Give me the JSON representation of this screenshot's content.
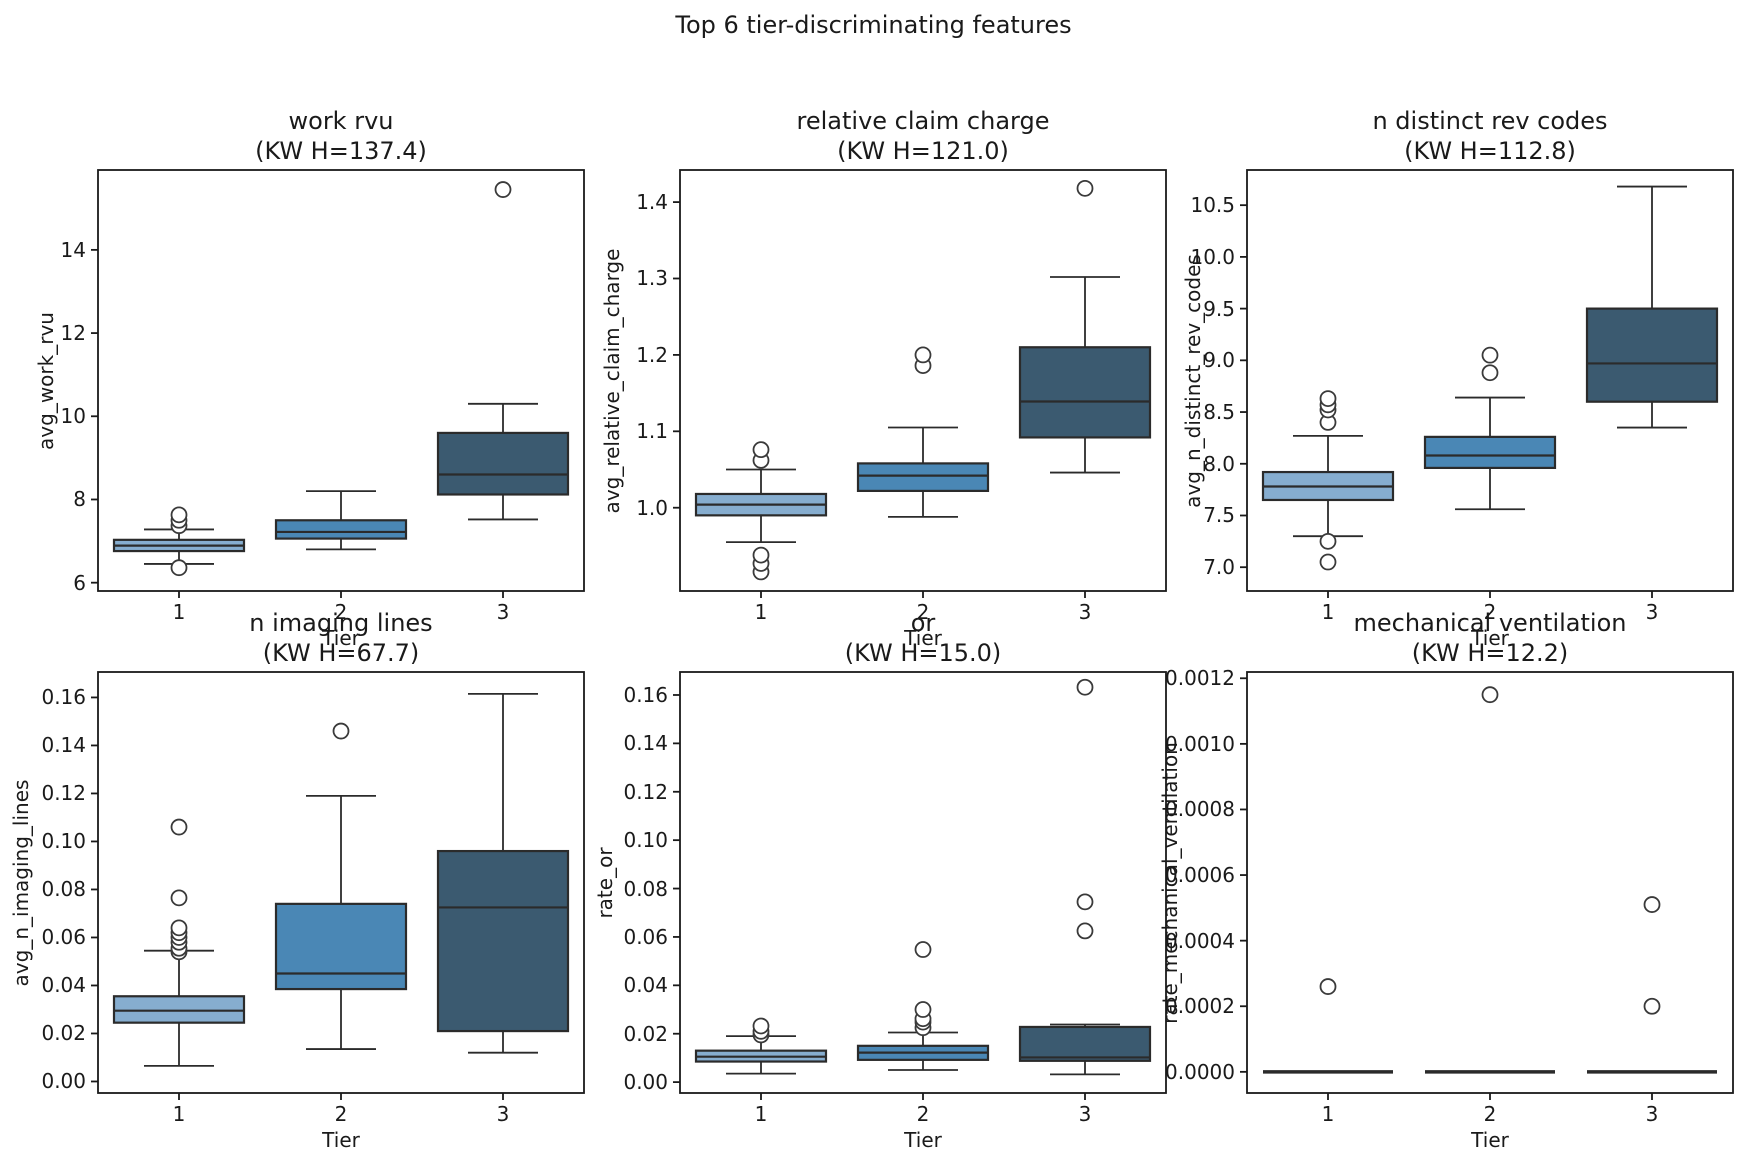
{
  "suptitle": "Top 6 tier-discriminating features",
  "colors": {
    "tier_fill": [
      "#86adcf",
      "#4a87b5",
      "#3b5a70"
    ],
    "box_edge": "#2b2b2b",
    "flier_edge": "#3a3a3a",
    "axis": "#1a1a1a",
    "text": "#1a1a1a",
    "background": "#ffffff"
  },
  "chart_data": [
    {
      "type": "box",
      "title": "work rvu",
      "kw_label": "(KW H=137.4)",
      "kw_h": 137.4,
      "ylabel": "avg_work_rvu",
      "xlabel": "Tier",
      "categories": [
        "1",
        "2",
        "3"
      ],
      "ylim": [
        5.8,
        15.92
      ],
      "grid": false,
      "yticks": [
        {
          "value": 6,
          "label": "6"
        },
        {
          "value": 8,
          "label": "8"
        },
        {
          "value": 10,
          "label": "10"
        },
        {
          "value": 12,
          "label": "12"
        },
        {
          "value": 14,
          "label": "14"
        }
      ],
      "boxes": [
        {
          "tier": "1",
          "whislo": 6.45,
          "q1": 6.76,
          "med": 6.89,
          "q3": 7.03,
          "whishi": 7.28,
          "fliers": [
            6.36,
            7.37,
            7.5,
            7.63
          ]
        },
        {
          "tier": "2",
          "whislo": 6.8,
          "q1": 7.06,
          "med": 7.22,
          "q3": 7.5,
          "whishi": 8.2,
          "fliers": []
        },
        {
          "tier": "3",
          "whislo": 7.52,
          "q1": 8.12,
          "med": 8.6,
          "q3": 9.6,
          "whishi": 10.3,
          "fliers": [
            15.45
          ]
        }
      ]
    },
    {
      "type": "box",
      "title": "relative claim charge",
      "kw_label": "(KW H=121.0)",
      "kw_h": 121.0,
      "ylabel": "avg_relative_claim_charge",
      "xlabel": "Tier",
      "categories": [
        "1",
        "2",
        "3"
      ],
      "ylim": [
        0.891,
        1.442
      ],
      "grid": false,
      "yticks": [
        {
          "value": 1.0,
          "label": "1.0"
        },
        {
          "value": 1.1,
          "label": "1.1"
        },
        {
          "value": 1.2,
          "label": "1.2"
        },
        {
          "value": 1.3,
          "label": "1.3"
        },
        {
          "value": 1.4,
          "label": "1.4"
        }
      ],
      "boxes": [
        {
          "tier": "1",
          "whislo": 0.955,
          "q1": 0.99,
          "med": 1.004,
          "q3": 1.018,
          "whishi": 1.05,
          "fliers": [
            0.916,
            0.927,
            0.938,
            1.062,
            1.076
          ]
        },
        {
          "tier": "2",
          "whislo": 0.988,
          "q1": 1.022,
          "med": 1.042,
          "q3": 1.058,
          "whishi": 1.105,
          "fliers": [
            1.186,
            1.2
          ]
        },
        {
          "tier": "3",
          "whislo": 1.046,
          "q1": 1.092,
          "med": 1.139,
          "q3": 1.21,
          "whishi": 1.302,
          "fliers": [
            1.418
          ]
        }
      ]
    },
    {
      "type": "box",
      "title": "n distinct rev codes",
      "kw_label": "(KW H=112.8)",
      "kw_h": 112.8,
      "ylabel": "avg_n_distinct_rev_codes",
      "xlabel": "Tier",
      "categories": [
        "1",
        "2",
        "3"
      ],
      "ylim": [
        6.77,
        10.84
      ],
      "grid": false,
      "yticks": [
        {
          "value": 7.0,
          "label": "7.0"
        },
        {
          "value": 7.5,
          "label": "7.5"
        },
        {
          "value": 8.0,
          "label": "8.0"
        },
        {
          "value": 8.5,
          "label": "8.5"
        },
        {
          "value": 9.0,
          "label": "9.0"
        },
        {
          "value": 9.5,
          "label": "9.5"
        },
        {
          "value": 10.0,
          "label": "10.0"
        },
        {
          "value": 10.5,
          "label": "10.5"
        }
      ],
      "boxes": [
        {
          "tier": "1",
          "whislo": 7.3,
          "q1": 7.65,
          "med": 7.78,
          "q3": 7.92,
          "whishi": 8.27,
          "fliers": [
            7.05,
            7.25,
            8.4,
            8.52,
            8.57,
            8.63
          ]
        },
        {
          "tier": "2",
          "whislo": 7.56,
          "q1": 7.96,
          "med": 8.08,
          "q3": 8.26,
          "whishi": 8.64,
          "fliers": [
            8.88,
            9.05
          ]
        },
        {
          "tier": "3",
          "whislo": 8.35,
          "q1": 8.6,
          "med": 8.97,
          "q3": 9.5,
          "whishi": 10.68,
          "fliers": []
        }
      ]
    },
    {
      "type": "box",
      "title": "n imaging lines",
      "kw_label": "(KW H=67.7)",
      "kw_h": 67.7,
      "ylabel": "avg_n_imaging_lines",
      "xlabel": "Tier",
      "categories": [
        "1",
        "2",
        "3"
      ],
      "ylim": [
        -0.0048,
        0.1706
      ],
      "grid": false,
      "yticks": [
        {
          "value": 0.0,
          "label": "0.00"
        },
        {
          "value": 0.02,
          "label": "0.02"
        },
        {
          "value": 0.04,
          "label": "0.04"
        },
        {
          "value": 0.06,
          "label": "0.06"
        },
        {
          "value": 0.08,
          "label": "0.08"
        },
        {
          "value": 0.1,
          "label": "0.10"
        },
        {
          "value": 0.12,
          "label": "0.12"
        },
        {
          "value": 0.14,
          "label": "0.14"
        },
        {
          "value": 0.16,
          "label": "0.16"
        }
      ],
      "boxes": [
        {
          "tier": "1",
          "whislo": 0.0065,
          "q1": 0.0245,
          "med": 0.0295,
          "q3": 0.0355,
          "whishi": 0.0545,
          "fliers": [
            0.054,
            0.0555,
            0.058,
            0.06,
            0.062,
            0.064,
            0.0765,
            0.106
          ]
        },
        {
          "tier": "2",
          "whislo": 0.0135,
          "q1": 0.0385,
          "med": 0.045,
          "q3": 0.074,
          "whishi": 0.119,
          "fliers": [
            0.146
          ]
        },
        {
          "tier": "3",
          "whislo": 0.012,
          "q1": 0.021,
          "med": 0.0725,
          "q3": 0.096,
          "whishi": 0.1615,
          "fliers": []
        }
      ]
    },
    {
      "type": "box",
      "title": "or",
      "kw_label": "(KW H=15.0)",
      "kw_h": 15.0,
      "ylabel": "rate_or",
      "xlabel": "Tier",
      "categories": [
        "1",
        "2",
        "3"
      ],
      "ylim": [
        -0.0045,
        0.1695
      ],
      "grid": false,
      "yticks": [
        {
          "value": 0.0,
          "label": "0.00"
        },
        {
          "value": 0.02,
          "label": "0.02"
        },
        {
          "value": 0.04,
          "label": "0.04"
        },
        {
          "value": 0.06,
          "label": "0.06"
        },
        {
          "value": 0.08,
          "label": "0.08"
        },
        {
          "value": 0.1,
          "label": "0.10"
        },
        {
          "value": 0.12,
          "label": "0.12"
        },
        {
          "value": 0.14,
          "label": "0.14"
        },
        {
          "value": 0.16,
          "label": "0.16"
        }
      ],
      "boxes": [
        {
          "tier": "1",
          "whislo": 0.0035,
          "q1": 0.0085,
          "med": 0.0105,
          "q3": 0.013,
          "whishi": 0.019,
          "fliers": [
            0.0195,
            0.021,
            0.0232
          ]
        },
        {
          "tier": "2",
          "whislo": 0.005,
          "q1": 0.0092,
          "med": 0.0122,
          "q3": 0.015,
          "whishi": 0.0205,
          "fliers": [
            0.0225,
            0.0248,
            0.0262,
            0.03,
            0.0548
          ]
        },
        {
          "tier": "3",
          "whislo": 0.0032,
          "q1": 0.0088,
          "med": 0.0102,
          "q3": 0.0228,
          "whishi": 0.0238,
          "fliers": [
            0.0625,
            0.0745,
            0.1632
          ]
        }
      ]
    },
    {
      "type": "box",
      "title": "mechanical ventilation",
      "kw_label": "(KW H=12.2)",
      "kw_h": 12.2,
      "ylabel": "rate_mechanical_ventilation",
      "xlabel": "Tier",
      "categories": [
        "1",
        "2",
        "3"
      ],
      "ylim": [
        -6.45e-05,
        0.0012191
      ],
      "grid": false,
      "yticks": [
        {
          "value": 0.0,
          "label": "0.0000"
        },
        {
          "value": 0.0002,
          "label": "0.0002"
        },
        {
          "value": 0.0004,
          "label": "0.0004"
        },
        {
          "value": 0.0006,
          "label": "0.0006"
        },
        {
          "value": 0.0008,
          "label": "0.0008"
        },
        {
          "value": 0.001,
          "label": "0.0010"
        },
        {
          "value": 0.0012,
          "label": "0.0012"
        }
      ],
      "boxes": [
        {
          "tier": "1",
          "whislo": 0.0,
          "q1": 0.0,
          "med": 0.0,
          "q3": 0.0,
          "whishi": 0.0,
          "fliers": [
            0.00026
          ]
        },
        {
          "tier": "2",
          "whislo": 0.0,
          "q1": 0.0,
          "med": 0.0,
          "q3": 0.0,
          "whishi": 0.0,
          "fliers": [
            0.00115
          ]
        },
        {
          "tier": "3",
          "whislo": 0.0,
          "q1": 0.0,
          "med": 0.0,
          "q3": 0.0,
          "whishi": 0.0,
          "fliers": [
            0.0002,
            0.00051
          ]
        }
      ]
    }
  ]
}
